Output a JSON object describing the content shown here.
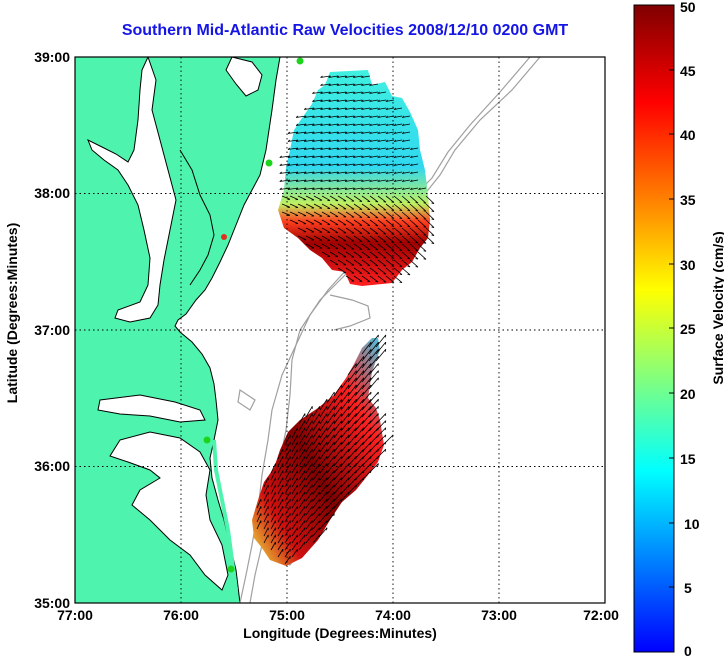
{
  "title": "Southern Mid-Atlantic Raw Velocities 2008/12/10 0200 GMT",
  "axes": {
    "xlabel": "Longitude (Degrees:Minutes)",
    "ylabel": "Latitude (Degrees:Minutes)",
    "x_ticks": [
      "77:00",
      "76:00",
      "75:00",
      "74:00",
      "73:00",
      "72:00"
    ],
    "y_ticks": [
      "39:00",
      "38:00",
      "37:00",
      "36:00",
      "35:00"
    ],
    "xlim": [
      -77,
      -72
    ],
    "ylim": [
      35,
      39
    ],
    "grid": "dotted"
  },
  "colorbar": {
    "label": "Surface Velocity (cm/s)",
    "ticks": [
      "50",
      "45",
      "40",
      "35",
      "30",
      "25",
      "20",
      "15",
      "10",
      "5",
      "0"
    ],
    "range": [
      0,
      50
    ],
    "colormap": [
      "#0000ff",
      "#0080ff",
      "#00ffff",
      "#80ff80",
      "#ffff00",
      "#ff8000",
      "#ff0000",
      "#800000"
    ]
  },
  "colors": {
    "land": "#4ef4ae",
    "coast": "#000000",
    "bathymetry": "#a0a0a0",
    "station": "#1dd41d",
    "station_alt": "#e03020"
  }
}
